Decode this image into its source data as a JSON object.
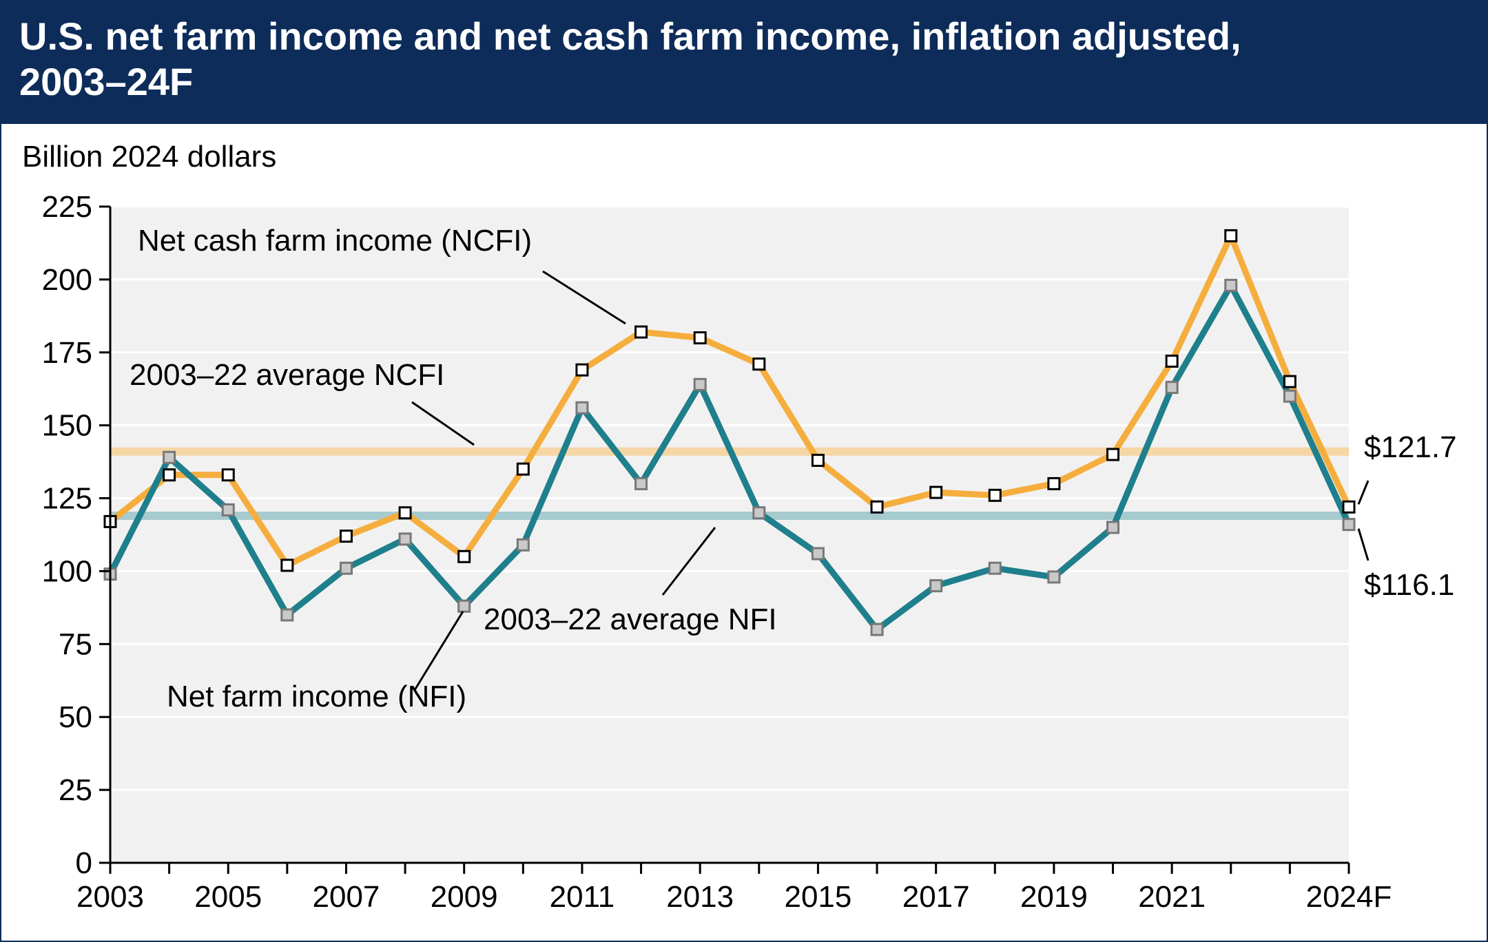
{
  "header": {
    "title": "U.S. net farm income and net cash farm income, inflation adjusted, 2003–24F"
  },
  "chart_data": {
    "type": "line",
    "title": "U.S. net farm income and net cash farm income, inflation adjusted, 2003–24F",
    "ylabel": "Billion 2024 dollars",
    "xlabel": "",
    "ylim": [
      0,
      225
    ],
    "yticks": [
      0,
      25,
      50,
      75,
      100,
      125,
      150,
      175,
      200,
      225
    ],
    "x": [
      "2003",
      "2004",
      "2005",
      "2006",
      "2007",
      "2008",
      "2009",
      "2010",
      "2011",
      "2012",
      "2013",
      "2014",
      "2015",
      "2016",
      "2017",
      "2018",
      "2019",
      "2020",
      "2021",
      "2022",
      "2023",
      "2024F"
    ],
    "xtick_labels": [
      "2003",
      "2005",
      "2007",
      "2009",
      "2011",
      "2013",
      "2015",
      "2017",
      "2019",
      "2021",
      "2024F"
    ],
    "grid": true,
    "series": [
      {
        "name": "Net cash farm income (NCFI)",
        "color": "#f5ae3e",
        "values": [
          117,
          133,
          133,
          102,
          112,
          120,
          105,
          135,
          169,
          182,
          180,
          171,
          138,
          122,
          127,
          126,
          130,
          140,
          172,
          215,
          165,
          122
        ]
      },
      {
        "name": "Net farm income (NFI)",
        "color": "#1f7f8c",
        "values": [
          99,
          139,
          121,
          85,
          101,
          111,
          88,
          109,
          156,
          130,
          164,
          120,
          106,
          80,
          95,
          101,
          98,
          115,
          163,
          198,
          160,
          116
        ]
      }
    ],
    "reference_lines": [
      {
        "name": "2003–22 average NCFI",
        "value": 141,
        "color": "#f5d6a4"
      },
      {
        "name": "2003–22 average NFI",
        "value": 119,
        "color": "#a6cbcf"
      }
    ],
    "annotations": {
      "ncfi_label": "Net cash farm income (NCFI)",
      "nfi_label": "Net farm income (NFI)",
      "avg_ncfi_label": "2003–22 average NCFI",
      "avg_nfi_label": "2003–22 average NFI",
      "ncfi_end_value": "$121.7",
      "nfi_end_value": "$116.1"
    }
  }
}
